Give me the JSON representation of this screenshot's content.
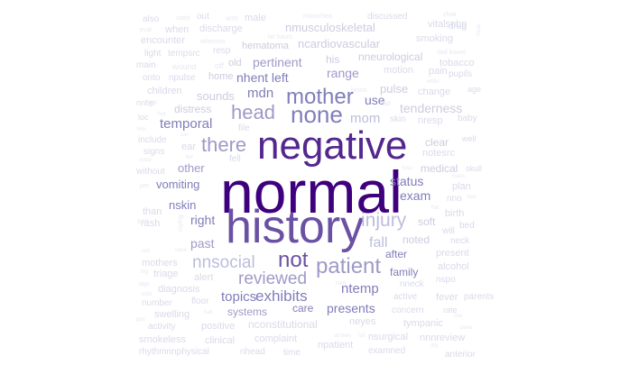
{
  "colors": [
    "#3f007d",
    "#54278f",
    "#6a51a3",
    "#807dba",
    "#9e9ac8",
    "#bcbddc",
    "#cccce0",
    "#dadaeb",
    "#e8e8f2"
  ],
  "words": [
    {
      "text": "normal",
      "weight": 1.0,
      "color": 0
    },
    {
      "text": "negative",
      "weight": 0.6,
      "color": 1
    },
    {
      "text": "history",
      "weight": 0.72,
      "color": 2
    },
    {
      "text": "none",
      "weight": 0.36,
      "color": 3
    },
    {
      "text": "mother",
      "weight": 0.34,
      "color": 3
    },
    {
      "text": "head",
      "weight": 0.3,
      "color": 4
    },
    {
      "text": "there",
      "weight": 0.31,
      "color": 4
    },
    {
      "text": "injury",
      "weight": 0.3,
      "color": 5
    },
    {
      "text": "patient",
      "weight": 0.33,
      "color": 4
    },
    {
      "text": "not",
      "weight": 0.34,
      "color": 2
    },
    {
      "text": "nnsocial",
      "weight": 0.26,
      "color": 5
    },
    {
      "text": "reviewed",
      "weight": 0.27,
      "color": 4
    },
    {
      "text": "fall",
      "weight": 0.22,
      "color": 5
    },
    {
      "text": "exhibits",
      "weight": 0.23,
      "color": 3
    },
    {
      "text": "presents",
      "weight": 0.2,
      "color": 3
    },
    {
      "text": "topics",
      "weight": 0.2,
      "color": 3
    },
    {
      "text": "ntemp",
      "weight": 0.2,
      "color": 3
    },
    {
      "text": "mom",
      "weight": 0.2,
      "color": 5
    },
    {
      "text": "mdn",
      "weight": 0.2,
      "color": 3
    },
    {
      "text": "temporal",
      "weight": 0.2,
      "color": 3
    },
    {
      "text": "nhent left",
      "weight": 0.19,
      "color": 3
    },
    {
      "text": "pertinent",
      "weight": 0.18,
      "color": 4
    },
    {
      "text": "range",
      "weight": 0.19,
      "color": 4
    },
    {
      "text": "use",
      "weight": 0.18,
      "color": 3
    },
    {
      "text": "status",
      "weight": 0.18,
      "color": 3
    },
    {
      "text": "exam",
      "weight": 0.19,
      "color": 3
    },
    {
      "text": "right",
      "weight": 0.18,
      "color": 3
    },
    {
      "text": "past",
      "weight": 0.18,
      "color": 4
    },
    {
      "text": "vomiting",
      "weight": 0.16,
      "color": 3
    },
    {
      "text": "nskin",
      "weight": 0.16,
      "color": 3
    },
    {
      "text": "other",
      "weight": 0.16,
      "color": 4
    },
    {
      "text": "after",
      "weight": 0.15,
      "color": 3
    },
    {
      "text": "family",
      "weight": 0.15,
      "color": 3
    },
    {
      "text": "care",
      "weight": 0.15,
      "color": 3
    },
    {
      "text": "systems",
      "weight": 0.15,
      "color": 4
    },
    {
      "text": "tenderness",
      "weight": 0.17,
      "color": 6
    },
    {
      "text": "pulse",
      "weight": 0.16,
      "color": 6
    },
    {
      "text": "sounds",
      "weight": 0.15,
      "color": 6
    },
    {
      "text": "distress",
      "weight": 0.15,
      "color": 6
    },
    {
      "text": "nneurological",
      "weight": 0.15,
      "color": 6
    },
    {
      "text": "nmusculoskeletal",
      "weight": 0.15,
      "color": 6
    },
    {
      "text": "ncardiovascular",
      "weight": 0.14,
      "color": 6
    },
    {
      "text": "hematoma",
      "weight": 0.13,
      "color": 6
    },
    {
      "text": "his",
      "weight": 0.14,
      "color": 6
    },
    {
      "text": "home",
      "weight": 0.13,
      "color": 6
    },
    {
      "text": "old",
      "weight": 0.13,
      "color": 6
    },
    {
      "text": "clear",
      "weight": 0.13,
      "color": 6
    },
    {
      "text": "medical",
      "weight": 0.13,
      "color": 6
    },
    {
      "text": "noted",
      "weight": 0.13,
      "color": 6
    },
    {
      "text": "soft",
      "weight": 0.13,
      "color": 6
    },
    {
      "text": "nneck",
      "weight": 0.11,
      "color": 7
    },
    {
      "text": "active",
      "weight": 0.11,
      "color": 7
    },
    {
      "text": "concern",
      "weight": 0.11,
      "color": 7
    },
    {
      "text": "tympanic",
      "weight": 0.11,
      "color": 7
    },
    {
      "text": "neyes",
      "weight": 0.11,
      "color": 7
    },
    {
      "text": "nconstitutional",
      "weight": 0.12,
      "color": 7
    },
    {
      "text": "complaint",
      "weight": 0.12,
      "color": 7
    },
    {
      "text": "clinical",
      "weight": 0.12,
      "color": 7
    },
    {
      "text": "smokeless",
      "weight": 0.12,
      "color": 7
    },
    {
      "text": "rhythmnnphysical",
      "weight": 0.11,
      "color": 7
    },
    {
      "text": "nhead",
      "weight": 0.11,
      "color": 7
    },
    {
      "text": "time",
      "weight": 0.1,
      "color": 7
    },
    {
      "text": "npatient",
      "weight": 0.11,
      "color": 7
    },
    {
      "text": "examned",
      "weight": 0.11,
      "color": 7
    },
    {
      "text": "nsurgical",
      "weight": 0.11,
      "color": 7
    },
    {
      "text": "nnnreview",
      "weight": 0.11,
      "color": 7
    },
    {
      "text": "positive",
      "weight": 0.11,
      "color": 7
    },
    {
      "text": "swelling",
      "weight": 0.11,
      "color": 7
    },
    {
      "text": "number",
      "weight": 0.1,
      "color": 7
    },
    {
      "text": "activity",
      "weight": 0.1,
      "color": 7
    },
    {
      "text": "floor",
      "weight": 0.1,
      "color": 7
    },
    {
      "text": "alert",
      "weight": 0.11,
      "color": 7
    },
    {
      "text": "diagnosis",
      "weight": 0.11,
      "color": 7
    },
    {
      "text": "triage",
      "weight": 0.11,
      "color": 7
    },
    {
      "text": "mothers",
      "weight": 0.11,
      "color": 7
    },
    {
      "text": "rash",
      "weight": 0.11,
      "color": 7
    },
    {
      "text": "than",
      "weight": 0.11,
      "color": 7
    },
    {
      "text": "without",
      "weight": 0.1,
      "color": 7
    },
    {
      "text": "signs",
      "weight": 0.1,
      "color": 7
    },
    {
      "text": "include",
      "weight": 0.1,
      "color": 7
    },
    {
      "text": "ear",
      "weight": 0.11,
      "color": 7
    },
    {
      "text": "fell",
      "weight": 0.1,
      "color": 7
    },
    {
      "text": "file",
      "weight": 0.1,
      "color": 7
    },
    {
      "text": "children",
      "weight": 0.11,
      "color": 7
    },
    {
      "text": "nnbp",
      "weight": 0.09,
      "color": 7
    },
    {
      "text": "loc",
      "weight": 0.09,
      "color": 7
    },
    {
      "text": "onto",
      "weight": 0.1,
      "color": 7
    },
    {
      "text": "npulse",
      "weight": 0.1,
      "color": 7
    },
    {
      "text": "main",
      "weight": 0.1,
      "color": 7
    },
    {
      "text": "light",
      "weight": 0.1,
      "color": 7
    },
    {
      "text": "tempsrc",
      "weight": 0.1,
      "color": 7
    },
    {
      "text": "encounter",
      "weight": 0.11,
      "color": 7
    },
    {
      "text": "also",
      "weight": 0.1,
      "color": 7
    },
    {
      "text": "when",
      "weight": 0.11,
      "color": 7
    },
    {
      "text": "discharge",
      "weight": 0.11,
      "color": 7
    },
    {
      "text": "male",
      "weight": 0.11,
      "color": 7
    },
    {
      "text": "out",
      "weight": 0.1,
      "color": 7
    },
    {
      "text": "discussed",
      "weight": 0.1,
      "color": 7
    },
    {
      "text": "vitalsnbp",
      "weight": 0.11,
      "color": 7
    },
    {
      "text": "smoking",
      "weight": 0.11,
      "color": 7
    },
    {
      "text": "drug",
      "weight": 0.1,
      "color": 7
    },
    {
      "text": "tobacco",
      "weight": 0.11,
      "color": 7
    },
    {
      "text": "motion",
      "weight": 0.11,
      "color": 7
    },
    {
      "text": "pain",
      "weight": 0.11,
      "color": 7
    },
    {
      "text": "pupils",
      "weight": 0.1,
      "color": 7
    },
    {
      "text": "change",
      "weight": 0.11,
      "color": 7
    },
    {
      "text": "nresp",
      "weight": 0.11,
      "color": 7
    },
    {
      "text": "skin",
      "weight": 0.1,
      "color": 7
    },
    {
      "text": "notesrc",
      "weight": 0.11,
      "color": 7
    },
    {
      "text": "plan",
      "weight": 0.11,
      "color": 7
    },
    {
      "text": "nno",
      "weight": 0.1,
      "color": 7
    },
    {
      "text": "birth",
      "weight": 0.11,
      "color": 7
    },
    {
      "text": "bed",
      "weight": 0.1,
      "color": 7
    },
    {
      "text": "will",
      "weight": 0.1,
      "color": 7
    },
    {
      "text": "neck",
      "weight": 0.1,
      "color": 7
    },
    {
      "text": "present",
      "weight": 0.11,
      "color": 7
    },
    {
      "text": "alcohol",
      "weight": 0.11,
      "color": 7
    },
    {
      "text": "nspo",
      "weight": 0.1,
      "color": 7
    },
    {
      "text": "fever",
      "weight": 0.11,
      "color": 7
    },
    {
      "text": "rate",
      "weight": 0.09,
      "color": 7
    },
    {
      "text": "anterior",
      "weight": 0.1,
      "color": 7
    },
    {
      "text": "parents",
      "weight": 0.1,
      "color": 7
    },
    {
      "text": "baby",
      "weight": 0.1,
      "color": 7
    },
    {
      "text": "well",
      "weight": 0.09,
      "color": 7
    },
    {
      "text": "age",
      "weight": 0.09,
      "color": 7
    },
    {
      "text": "skull",
      "weight": 0.09,
      "color": 7
    },
    {
      "text": "resp",
      "weight": 0.1,
      "color": 7
    },
    {
      "text": "wound",
      "weight": 0.09,
      "color": 8
    },
    {
      "text": "off",
      "weight": 0.09,
      "color": 8
    },
    {
      "text": "arm",
      "weight": 0.08,
      "color": 8
    },
    {
      "text": "used",
      "weight": 0.07,
      "color": 8
    },
    {
      "text": "eval",
      "weight": 0.07,
      "color": 8
    },
    {
      "text": "wheezes",
      "weight": 0.07,
      "color": 8
    },
    {
      "text": "rhinorrhea",
      "weight": 0.07,
      "color": 8
    },
    {
      "text": "hit hours",
      "weight": 0.07,
      "color": 8
    },
    {
      "text": "chair",
      "weight": 0.07,
      "color": 8
    },
    {
      "text": "dad bowel",
      "weight": 0.07,
      "color": 8
    },
    {
      "text": "blood",
      "weight": 0.07,
      "color": 8
    },
    {
      "text": "had",
      "weight": 0.07,
      "color": 8
    },
    {
      "text": "while",
      "weight": 0.06,
      "color": 8
    },
    {
      "text": "hard",
      "weight": 0.06,
      "color": 8
    },
    {
      "text": "hat",
      "weight": 0.06,
      "color": 8
    },
    {
      "text": "him",
      "weight": 0.06,
      "color": 8
    },
    {
      "text": "car",
      "weight": 0.06,
      "color": 8
    },
    {
      "text": "loss",
      "weight": 0.06,
      "color": 8
    },
    {
      "text": "mass",
      "weight": 0.06,
      "color": 8
    },
    {
      "text": "last",
      "weight": 0.06,
      "color": 8
    },
    {
      "text": "flat",
      "weight": 0.06,
      "color": 8
    },
    {
      "text": "per",
      "weight": 0.07,
      "color": 8
    },
    {
      "text": "spo",
      "weight": 0.08,
      "color": 8
    },
    {
      "text": "red",
      "weight": 0.06,
      "color": 8
    },
    {
      "text": "case",
      "weight": 0.06,
      "color": 8
    },
    {
      "text": "leg",
      "weight": 0.06,
      "color": 8
    },
    {
      "text": "ago",
      "weight": 0.07,
      "color": 8
    },
    {
      "text": "mild",
      "weight": 0.06,
      "color": 8
    },
    {
      "text": "nail",
      "weight": 0.06,
      "color": 8
    },
    {
      "text": "nleft",
      "weight": 0.06,
      "color": 8
    },
    {
      "text": "low",
      "weight": 0.06,
      "color": 8
    },
    {
      "text": "came",
      "weight": 0.06,
      "color": 8
    },
    {
      "text": "dry",
      "weight": 0.06,
      "color": 8
    },
    {
      "text": "all then",
      "weight": 0.06,
      "color": 8
    },
    {
      "text": "full",
      "weight": 0.06,
      "color": 8
    },
    {
      "text": "ges",
      "weight": 0.06,
      "color": 8
    },
    {
      "text": "crying",
      "weight": 0.07,
      "color": 8
    },
    {
      "text": "fell",
      "weight": 0.06,
      "color": 8
    },
    {
      "text": "nose",
      "weight": 0.06,
      "color": 8
    },
    {
      "text": "focal",
      "weight": 0.06,
      "color": 8
    }
  ]
}
